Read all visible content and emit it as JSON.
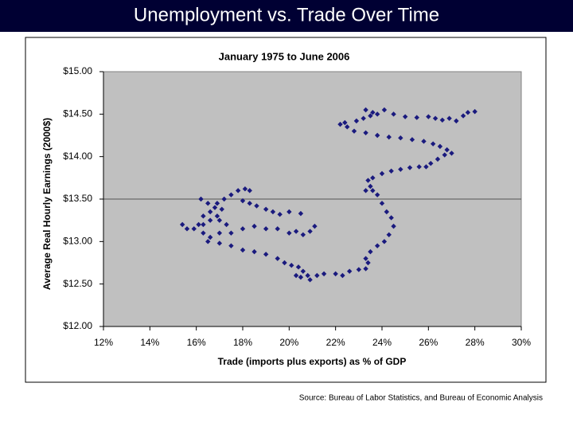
{
  "slide_title": "Unemployment vs. Trade Over Time",
  "source": "Source: Bureau of Labor Statistics, and Bureau of Economic Analysis",
  "chart_data": {
    "type": "scatter",
    "title": "January 1975 to June 2006",
    "xlabel": "Trade (imports plus exports) as % of GDP",
    "ylabel": "Average Real Hourly Earnings (2000$)",
    "color": "#1a1a7e",
    "xlim": [
      12,
      30
    ],
    "ylim": [
      12,
      15
    ],
    "xticks": [
      {
        "value": 12,
        "label": "12%"
      },
      {
        "value": 14,
        "label": "14%"
      },
      {
        "value": 16,
        "label": "16%"
      },
      {
        "value": 18,
        "label": "18%"
      },
      {
        "value": 20,
        "label": "20%"
      },
      {
        "value": 22,
        "label": "22%"
      },
      {
        "value": 24,
        "label": "24%"
      },
      {
        "value": 26,
        "label": "26%"
      },
      {
        "value": 28,
        "label": "28%"
      },
      {
        "value": 30,
        "label": "30%"
      }
    ],
    "yticks": [
      {
        "value": 12,
        "label": "$12.00"
      },
      {
        "value": 12.5,
        "label": "$12.50"
      },
      {
        "value": 13,
        "label": "$13.00"
      },
      {
        "value": 13.5,
        "label": "$13.50"
      },
      {
        "value": 14,
        "label": "$14.00"
      },
      {
        "value": 14.5,
        "label": "$14.50"
      },
      {
        "value": 15,
        "label": "$15.00"
      }
    ],
    "reference_lines": [
      13.5
    ],
    "x": [
      15.4,
      15.6,
      15.9,
      16.1,
      16.3,
      16.6,
      16.9,
      17.2,
      17.5,
      17.8,
      18.1,
      18.3,
      18.0,
      18.3,
      18.6,
      19.0,
      19.3,
      19.6,
      20.0,
      20.5,
      21.1,
      20.9,
      20.6,
      20.3,
      20.0,
      19.5,
      19.0,
      18.5,
      18.0,
      17.5,
      17.0,
      16.6,
      16.3,
      16.2,
      16.5,
      16.8,
      17.1,
      16.9,
      16.6,
      16.3,
      17.0,
      17.3,
      16.5,
      17.0,
      17.5,
      18.0,
      18.5,
      19.0,
      19.5,
      19.8,
      20.1,
      20.4,
      20.6,
      20.8,
      20.5,
      20.3,
      20.9,
      21.2,
      21.5,
      22.0,
      22.3,
      22.6,
      23.0,
      23.3,
      23.4,
      23.3,
      23.5,
      23.8,
      24.1,
      24.3,
      24.5,
      24.4,
      24.2,
      24.0,
      23.8,
      23.6,
      23.3,
      23.5,
      23.4,
      23.6,
      24.0,
      24.4,
      24.8,
      25.2,
      25.6,
      25.9,
      26.1,
      26.4,
      26.7,
      27.0,
      26.8,
      26.5,
      26.2,
      25.8,
      25.3,
      24.8,
      24.3,
      23.8,
      23.3,
      22.8,
      22.5,
      22.2,
      22.4,
      22.9,
      23.2,
      23.5,
      23.3,
      23.6,
      23.8,
      24.1,
      24.5,
      25.0,
      25.5,
      26.0,
      26.3,
      26.6,
      26.9,
      27.2,
      27.5,
      27.7,
      28.0
    ],
    "y": [
      13.2,
      13.15,
      13.15,
      13.2,
      13.3,
      13.35,
      13.45,
      13.5,
      13.55,
      13.6,
      13.62,
      13.6,
      13.48,
      13.45,
      13.42,
      13.38,
      13.35,
      13.32,
      13.35,
      13.33,
      13.18,
      13.12,
      13.08,
      13.12,
      13.1,
      13.15,
      13.15,
      13.18,
      13.15,
      13.1,
      13.1,
      13.05,
      13.1,
      13.5,
      13.45,
      13.4,
      13.38,
      13.3,
      13.25,
      13.2,
      13.25,
      13.2,
      13.0,
      12.98,
      12.95,
      12.9,
      12.88,
      12.85,
      12.8,
      12.75,
      12.72,
      12.7,
      12.65,
      12.6,
      12.58,
      12.6,
      12.55,
      12.6,
      12.62,
      12.62,
      12.6,
      12.65,
      12.67,
      12.68,
      12.75,
      12.8,
      12.88,
      12.95,
      13.0,
      13.08,
      13.18,
      13.28,
      13.35,
      13.45,
      13.55,
      13.6,
      13.6,
      13.65,
      13.72,
      13.75,
      13.8,
      13.83,
      13.85,
      13.87,
      13.88,
      13.88,
      13.92,
      13.97,
      14.02,
      14.04,
      14.08,
      14.12,
      14.15,
      14.18,
      14.2,
      14.22,
      14.23,
      14.25,
      14.28,
      14.3,
      14.35,
      14.38,
      14.4,
      14.42,
      14.45,
      14.48,
      14.55,
      14.52,
      14.5,
      14.55,
      14.5,
      14.47,
      14.46,
      14.47,
      14.45,
      14.43,
      14.45,
      14.42,
      14.48,
      14.52,
      14.53
    ]
  }
}
